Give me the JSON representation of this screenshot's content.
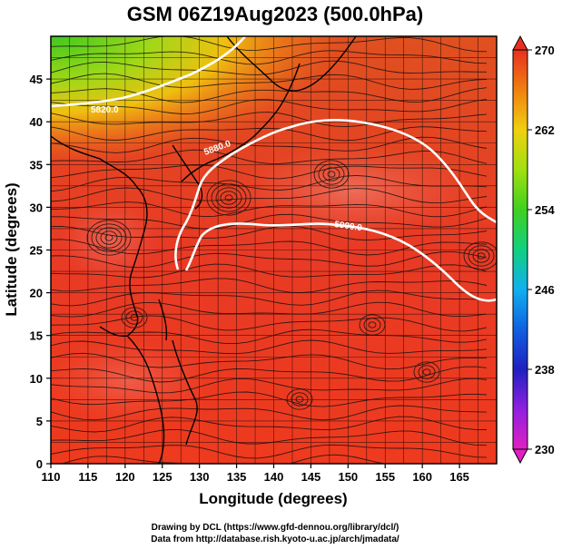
{
  "title": "GSM 06Z19Aug2023 (500.0hPa)",
  "x_axis": {
    "label": "Longitude (degrees)",
    "ticks": [
      "110",
      "115",
      "120",
      "125",
      "130",
      "135",
      "140",
      "145",
      "150",
      "155",
      "160",
      "165"
    ],
    "tick_values": [
      110,
      115,
      120,
      125,
      130,
      135,
      140,
      145,
      150,
      155,
      160,
      165
    ],
    "range": [
      110,
      170
    ]
  },
  "y_axis": {
    "label": "Latitude (degrees)",
    "ticks": [
      "0",
      "5",
      "10",
      "15",
      "20",
      "25",
      "30",
      "35",
      "40",
      "45"
    ],
    "tick_values": [
      0,
      5,
      10,
      15,
      20,
      25,
      30,
      35,
      40,
      45
    ],
    "range": [
      0,
      50
    ]
  },
  "colorbar": {
    "ticks": [
      "230",
      "238",
      "246",
      "254",
      "262",
      "270"
    ],
    "tick_values": [
      230,
      238,
      246,
      254,
      262,
      270
    ],
    "range": [
      230,
      270
    ],
    "colors": [
      "#e020c0",
      "#9020e0",
      "#2020c0",
      "#1060e0",
      "#10b0f0",
      "#10d080",
      "#40d020",
      "#a0e010",
      "#f0d010",
      "#f08010",
      "#f04010",
      "#e83020"
    ]
  },
  "contours": [
    {
      "label": "5820.0"
    },
    {
      "label": "5880.0"
    },
    {
      "label": "5900.0"
    }
  ],
  "credits": {
    "line1": "Drawing by DCL (https://www.gfd-dennou.org/library/dcl/)",
    "line2": "Data from http://database.rish.kyoto-u.ac.jp/arch/jmadata/"
  }
}
